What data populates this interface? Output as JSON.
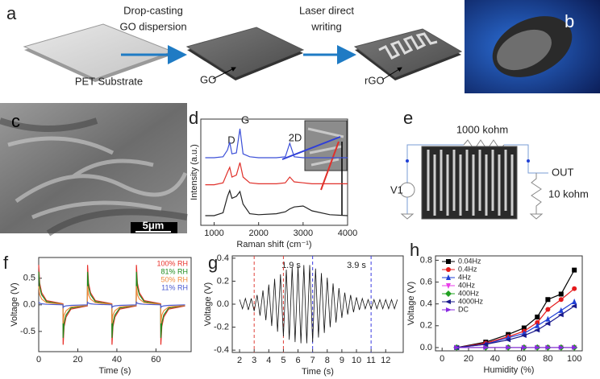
{
  "panel_labels": [
    "a",
    "b",
    "c",
    "d",
    "e",
    "f",
    "g",
    "h"
  ],
  "a": {
    "step1_line1": "Drop-casting",
    "step1_line2": "GO dispersion",
    "step2_line1": "Laser direct",
    "step2_line2": "writing",
    "substrate": "PET Substrate",
    "go": "GO",
    "rgo": "rGO"
  },
  "c": {
    "scale_bar": "5μm"
  },
  "e": {
    "top_resistor": "1000 kohm",
    "source": "V1",
    "output": "OUT",
    "load_resistor": "10 kohm"
  },
  "chart_data": [
    {
      "type": "line",
      "xlabel": "Raman shift (cm⁻¹)",
      "ylabel": "Intensity (a.u.)",
      "annotations": [
        "D",
        "G",
        "2D"
      ],
      "x": [
        800,
        1000,
        1200,
        1300,
        1350,
        1400,
        1500,
        1580,
        1650,
        1800,
        2000,
        2400,
        2600,
        2700,
        2800,
        3000,
        3200,
        3600,
        4000
      ],
      "xlim": [
        700,
        4000
      ],
      "xticks": [
        1000,
        2000,
        3000,
        4000
      ],
      "ylim": [
        0,
        1.1
      ],
      "series": [
        {
          "color": "#3b4fd8",
          "values": [
            0.7,
            0.7,
            0.71,
            0.78,
            0.86,
            0.74,
            0.75,
            1.0,
            0.74,
            0.71,
            0.7,
            0.7,
            0.71,
            0.85,
            0.71,
            0.7,
            0.7,
            0.7,
            0.7
          ]
        },
        {
          "color": "#e0302a",
          "values": [
            0.42,
            0.42,
            0.44,
            0.55,
            0.6,
            0.5,
            0.52,
            0.65,
            0.5,
            0.44,
            0.43,
            0.43,
            0.44,
            0.5,
            0.45,
            0.44,
            0.43,
            0.43,
            0.43
          ]
        },
        {
          "color": "#222222",
          "values": [
            0.1,
            0.1,
            0.13,
            0.3,
            0.36,
            0.28,
            0.3,
            0.35,
            0.22,
            0.12,
            0.11,
            0.12,
            0.14,
            0.17,
            0.19,
            0.2,
            0.15,
            0.11,
            0.1
          ]
        }
      ]
    },
    {
      "type": "line",
      "xlabel": "Time (s)",
      "ylabel": "Voltage (V)",
      "legend": "upper-right",
      "x": [
        0,
        0.5,
        1.5,
        4,
        12.4,
        12.5,
        13,
        14,
        16.5,
        24.9,
        25,
        25.5,
        26.5,
        29,
        37.4,
        37.5,
        38,
        39,
        41.5,
        49.9,
        50,
        50.5,
        51.5,
        54,
        62.4,
        62.5,
        63,
        64,
        66.5,
        74.9
      ],
      "xlim": [
        0,
        78
      ],
      "xticks": [
        0,
        20,
        40,
        60
      ],
      "ylim": [
        -0.88,
        0.89
      ],
      "yticks": [
        -0.5,
        {
          "value": 0,
          "label": "0.0"
        },
        0.5
      ],
      "series": [
        {
          "name": "100% RH",
          "color": "#e8312a",
          "values": [
            0.75,
            0.41,
            0.23,
            0.08,
            0.02,
            -0.75,
            -0.41,
            -0.23,
            -0.08,
            -0.02,
            0.75,
            0.41,
            0.23,
            0.08,
            0.02,
            -0.75,
            -0.41,
            -0.23,
            -0.08,
            -0.02,
            0.75,
            0.41,
            0.23,
            0.08,
            0.02,
            -0.75,
            -0.41,
            -0.23,
            -0.08,
            -0.02
          ]
        },
        {
          "name": "81% RH",
          "color": "#1e8c1e",
          "values": [
            0.62,
            0.34,
            0.19,
            0.06,
            0.01,
            -0.62,
            -0.34,
            -0.19,
            -0.06,
            -0.01,
            0.62,
            0.34,
            0.19,
            0.06,
            0.01,
            -0.62,
            -0.34,
            -0.19,
            -0.06,
            -0.01,
            0.62,
            0.34,
            0.19,
            0.06,
            0.01,
            -0.62,
            -0.34,
            -0.19,
            -0.06,
            -0.01
          ]
        },
        {
          "name": "50% RH",
          "color": "#f08a3c",
          "values": [
            0.35,
            0.19,
            0.11,
            0.04,
            0.01,
            -0.35,
            -0.19,
            -0.11,
            -0.04,
            -0.01,
            0.35,
            0.19,
            0.11,
            0.04,
            0.01,
            -0.35,
            -0.19,
            -0.11,
            -0.04,
            -0.01,
            0.35,
            0.19,
            0.11,
            0.04,
            0.01,
            -0.35,
            -0.19,
            -0.11,
            -0.04,
            -0.01
          ]
        },
        {
          "name": "11% RH",
          "color": "#4a5bd1",
          "values": [
            0.05,
            0.03,
            0.02,
            0.01,
            0,
            -0.05,
            -0.03,
            -0.02,
            -0.01,
            0,
            0.05,
            0.03,
            0.02,
            0.01,
            0,
            -0.05,
            -0.03,
            -0.02,
            -0.01,
            0,
            0.05,
            0.03,
            0.02,
            0.01,
            0,
            -0.05,
            -0.03,
            -0.02,
            -0.01,
            0
          ]
        }
      ]
    },
    {
      "type": "line",
      "xlabel": "Time (s)",
      "ylabel": "Voltage (V)",
      "annotations": [
        "1.9 s",
        "3.9 s"
      ],
      "vlines": [
        {
          "x": 3,
          "color": "#e0403a"
        },
        {
          "x": 5,
          "color": "#e0403a"
        },
        {
          "x": 7,
          "color": "#3a3ae0"
        },
        {
          "x": 11,
          "color": "#3a3ae0"
        }
      ],
      "x": [
        2.0,
        2.2,
        2.4,
        2.6,
        2.8,
        3.0,
        3.2,
        3.4,
        3.6,
        3.8,
        4.0,
        4.2,
        4.4,
        4.6,
        4.8,
        5.0,
        5.2,
        5.4,
        5.6,
        5.8,
        6.0,
        6.2,
        6.4,
        6.6,
        6.8,
        7.0,
        7.2,
        7.4,
        7.6,
        7.8,
        8.0,
        8.2,
        8.4,
        8.6,
        8.8,
        9.0,
        9.2,
        9.4,
        9.6,
        9.8,
        10.0,
        10.2,
        10.4,
        10.6,
        10.8,
        11.0,
        11.2,
        11.4,
        11.6,
        11.8,
        12.0,
        12.2,
        12.4,
        12.6,
        12.8
      ],
      "xlim": [
        1.5,
        13.2
      ],
      "xticks": [
        2,
        3,
        4,
        5,
        6,
        7,
        8,
        9,
        10,
        11,
        12
      ],
      "ylim": [
        -0.42,
        0.42
      ],
      "yticks": [
        -0.4,
        -0.2,
        {
          "value": 0,
          "label": "0.0"
        },
        0.2,
        0.4
      ],
      "series": [
        {
          "color": "#111111",
          "values": [
            0.04,
            -0.04,
            0.05,
            -0.05,
            0.05,
            -0.06,
            0.08,
            -0.1,
            0.12,
            -0.14,
            0.17,
            -0.19,
            0.22,
            -0.24,
            0.26,
            -0.28,
            0.3,
            -0.31,
            0.32,
            -0.33,
            0.33,
            -0.34,
            0.34,
            -0.34,
            0.34,
            -0.33,
            0.31,
            -0.29,
            0.27,
            -0.25,
            0.23,
            -0.2,
            0.18,
            -0.16,
            0.14,
            -0.12,
            0.1,
            -0.09,
            0.08,
            -0.07,
            0.06,
            -0.05,
            0.05,
            -0.04,
            0.04,
            -0.04,
            0.04,
            -0.04,
            0.04,
            -0.04,
            0.04,
            -0.04,
            0.04,
            -0.04,
            0.04
          ]
        }
      ]
    },
    {
      "type": "line",
      "xlabel": "Humidity (%)",
      "ylabel": "Voltage (V)",
      "legend": "upper-left",
      "x": [
        11,
        33,
        50,
        62,
        72,
        80,
        90,
        100
      ],
      "xlim": [
        -5,
        106
      ],
      "xticks": [
        0,
        20,
        40,
        60,
        80,
        100
      ],
      "ylim": [
        -0.03,
        0.84
      ],
      "yticks": [
        {
          "value": 0,
          "label": "0.0"
        },
        0.2,
        0.4,
        0.6,
        0.8
      ],
      "series": [
        {
          "name": "0.04Hz",
          "color": "#000000",
          "marker": "square",
          "values": [
            0,
            0.05,
            0.12,
            0.18,
            0.28,
            0.44,
            0.49,
            0.71
          ]
        },
        {
          "name": "0.4Hz",
          "color": "#e41a1c",
          "marker": "circle",
          "values": [
            0,
            0.04,
            0.1,
            0.15,
            0.23,
            0.35,
            0.44,
            0.54
          ]
        },
        {
          "name": "4Hz",
          "color": "#1f3fd6",
          "marker": "triangle-up",
          "values": [
            0,
            0.03,
            0.09,
            0.13,
            0.2,
            0.26,
            0.34,
            0.42
          ]
        },
        {
          "name": "40Hz",
          "color": "#e83ee8",
          "marker": "triangle-down",
          "values": [
            0,
            0,
            0,
            0,
            0,
            0,
            0,
            0
          ]
        },
        {
          "name": "400Hz",
          "color": "#20a020",
          "marker": "diamond",
          "values": [
            0,
            0,
            0,
            0,
            0,
            0,
            0,
            0
          ]
        },
        {
          "name": "4000Hz",
          "color": "#1a1a8c",
          "marker": "triangle-left",
          "values": [
            0,
            0.03,
            0.07,
            0.11,
            0.16,
            0.22,
            0.3,
            0.38
          ]
        },
        {
          "name": "DC",
          "color": "#8a2be2",
          "marker": "triangle-right",
          "values": [
            0,
            0,
            0,
            0,
            0,
            0,
            0,
            0
          ]
        }
      ]
    }
  ]
}
